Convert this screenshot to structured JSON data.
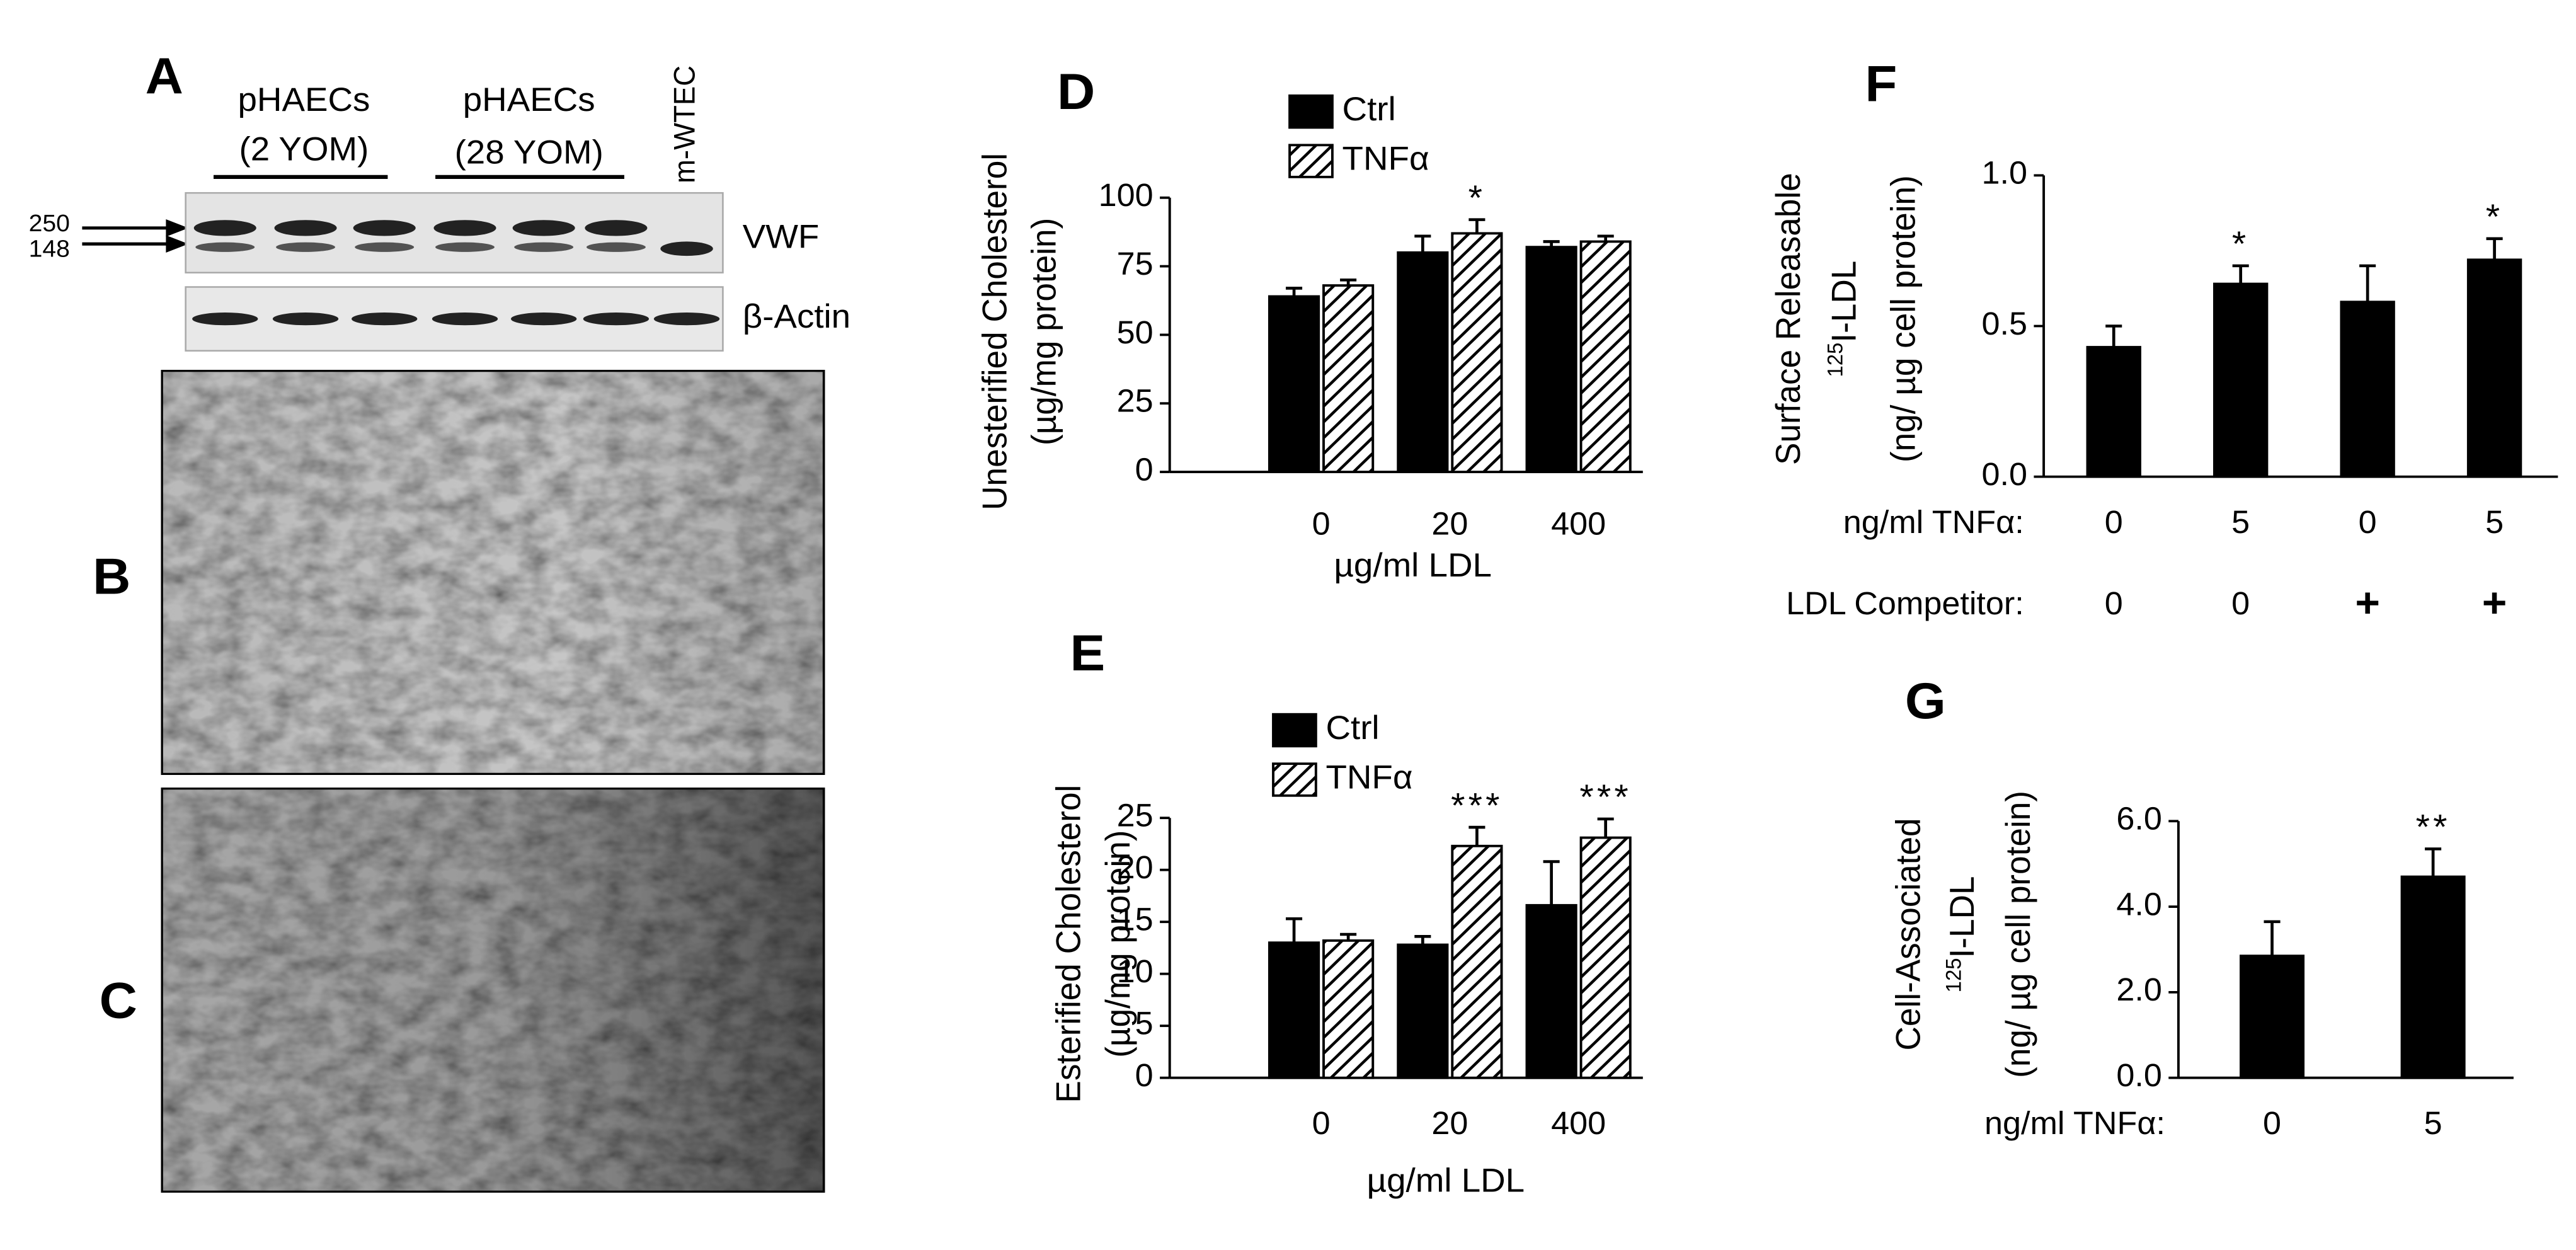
{
  "panel_a": {
    "letter": "A",
    "group1": [
      "pHAECs",
      "(2 YOM)"
    ],
    "group2": [
      "pHAECs",
      "(28 YOM)"
    ],
    "lane7": "m-WTEC",
    "markers": [
      "250",
      "148"
    ],
    "bands": [
      "VWF",
      "β-Actin"
    ]
  },
  "panel_b": {
    "letter": "B"
  },
  "panel_c": {
    "letter": "C"
  },
  "chart_data": [
    {
      "type": "bar",
      "letter": "D",
      "ylabel": [
        "Unesterified Cholesterol",
        "(µg/mg protein)"
      ],
      "xlabel": "µg/ml LDL",
      "categories": [
        "0",
        "20",
        "400"
      ],
      "series": [
        {
          "name": "Ctrl",
          "color": "#000000",
          "hatch": false,
          "values": [
            64,
            80,
            82
          ],
          "errors": [
            3,
            6,
            2
          ],
          "annotations": [
            null,
            null,
            null
          ]
        },
        {
          "name": "TNFα",
          "color": "#000000",
          "hatch": true,
          "values": [
            68,
            87,
            84
          ],
          "errors": [
            2,
            5,
            2
          ],
          "annotations": [
            null,
            "*",
            null
          ]
        }
      ],
      "ylim": [
        0,
        100
      ],
      "yticks": [
        0,
        25,
        50,
        75,
        100
      ]
    },
    {
      "type": "bar",
      "letter": "E",
      "ylabel": [
        "Esterified Cholesterol",
        "(µg/mg protein)"
      ],
      "xlabel": "µg/ml LDL",
      "categories": [
        "0",
        "20",
        "400"
      ],
      "series": [
        {
          "name": "Ctrl",
          "color": "#000000",
          "hatch": false,
          "values": [
            13,
            12.8,
            16.6
          ],
          "errors": [
            2.3,
            0.8,
            4.2
          ],
          "annotations": [
            null,
            null,
            null
          ]
        },
        {
          "name": "TNFα",
          "color": "#000000",
          "hatch": true,
          "values": [
            13.2,
            22.3,
            23.1
          ],
          "errors": [
            0.6,
            1.8,
            1.8
          ],
          "annotations": [
            null,
            "***",
            "***"
          ]
        }
      ],
      "ylim": [
        0,
        25
      ],
      "yticks": [
        0,
        5,
        10,
        15,
        20,
        25
      ]
    },
    {
      "type": "bar",
      "letter": "F",
      "ylabel": [
        "Surface Releasable",
        {
          "sup": "125",
          "text": "I-LDL"
        },
        "(ng/ µg cell protein)"
      ],
      "xrows": [
        {
          "label": "ng/ml TNFα:",
          "categories": [
            "0",
            "5",
            "0",
            "5"
          ]
        },
        {
          "label": "LDL Competitor:",
          "categories": [
            "0",
            "0",
            "+",
            "+"
          ]
        }
      ],
      "series": [
        {
          "color": "#000000",
          "hatch": false,
          "values": [
            0.43,
            0.64,
            0.58,
            0.72
          ],
          "errors": [
            0.07,
            0.06,
            0.12,
            0.07
          ],
          "annotations": [
            null,
            "*",
            null,
            "*"
          ]
        }
      ],
      "ylim": [
        0,
        1
      ],
      "yticks": [
        {
          "value": 0,
          "label": "0.0"
        },
        {
          "value": 0.5,
          "label": "0.5"
        },
        {
          "value": 1,
          "label": "1.0"
        }
      ]
    },
    {
      "type": "bar",
      "letter": "G",
      "ylabel": [
        "Cell-Associated",
        {
          "sup": "125",
          "text": "I-LDL"
        },
        "(ng/ µg cell protein)"
      ],
      "xrows": [
        {
          "label": "ng/ml TNFα:",
          "categories": [
            "0",
            "5"
          ]
        }
      ],
      "series": [
        {
          "color": "#000000",
          "hatch": false,
          "values": [
            2.85,
            4.7
          ],
          "errors": [
            0.8,
            0.65
          ],
          "annotations": [
            null,
            "**"
          ]
        }
      ],
      "ylim": [
        0,
        6
      ],
      "yticks": [
        {
          "value": 0,
          "label": "0.0"
        },
        {
          "value": 2,
          "label": "2.0"
        },
        {
          "value": 4,
          "label": "4.0"
        },
        {
          "value": 6,
          "label": "6.0"
        }
      ]
    }
  ]
}
